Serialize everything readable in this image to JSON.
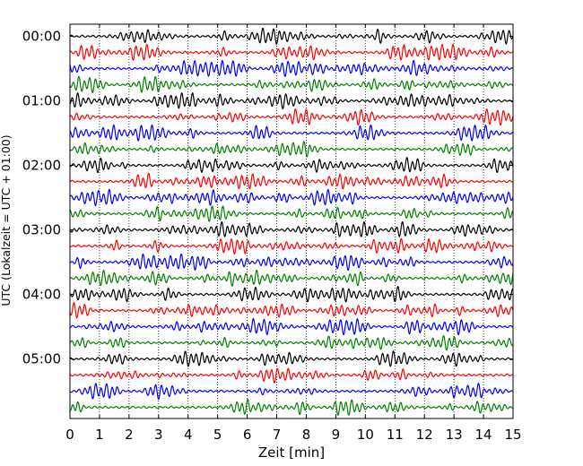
{
  "chart_data": {
    "type": "line",
    "title": "",
    "xlabel": "Zeit  [min]",
    "ylabel": "UTC (Lokalzeit = UTC + 01:00)",
    "xlim": [
      0,
      15
    ],
    "x_ticks": [
      0,
      1,
      2,
      3,
      4,
      5,
      6,
      7,
      8,
      9,
      10,
      11,
      12,
      13,
      14,
      15
    ],
    "y_ticks": [
      "00:00",
      "01:00",
      "02:00",
      "03:00",
      "04:00",
      "05:00"
    ],
    "trace_interval_minutes": 15,
    "grid": "vertical dotted",
    "legend": "none",
    "colors": [
      "#000000",
      "#ff0000",
      "#0000ff",
      "#008000"
    ],
    "series": [
      {
        "start": "00:00"
      },
      {
        "start": "00:15"
      },
      {
        "start": "00:30"
      },
      {
        "start": "00:45"
      },
      {
        "start": "01:00"
      },
      {
        "start": "01:15"
      },
      {
        "start": "01:30"
      },
      {
        "start": "01:45"
      },
      {
        "start": "02:00"
      },
      {
        "start": "02:15"
      },
      {
        "start": "02:30"
      },
      {
        "start": "02:45"
      },
      {
        "start": "03:00"
      },
      {
        "start": "03:15"
      },
      {
        "start": "03:30"
      },
      {
        "start": "03:45"
      },
      {
        "start": "04:00"
      },
      {
        "start": "04:15"
      },
      {
        "start": "04:30"
      },
      {
        "start": "04:45"
      },
      {
        "start": "05:00"
      },
      {
        "start": "05:15"
      },
      {
        "start": "05:30"
      },
      {
        "start": "05:45"
      }
    ]
  }
}
